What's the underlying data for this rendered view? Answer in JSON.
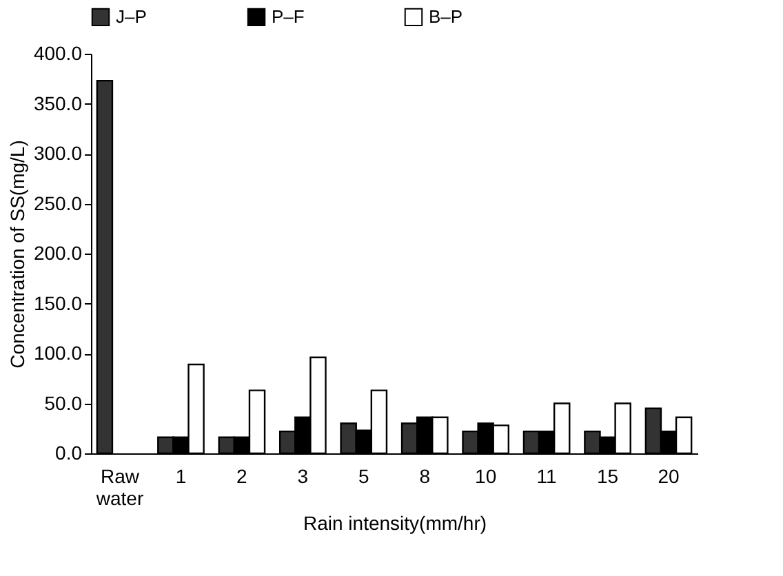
{
  "chart_data": {
    "type": "bar",
    "xlabel": "Rain intensity(mm/hr)",
    "ylabel": "Concentration of SS(mg/L)",
    "categories": [
      "Raw water",
      "1",
      "2",
      "3",
      "5",
      "8",
      "10",
      "11",
      "15",
      "20"
    ],
    "series": [
      {
        "name": "J–P",
        "color": "#333333",
        "values": [
          373,
          16,
          16,
          22,
          30,
          30,
          22,
          22,
          22,
          45
        ]
      },
      {
        "name": "P–F",
        "color": "#000000",
        "values": [
          null,
          16,
          16,
          36,
          23,
          36,
          30,
          22,
          16,
          22
        ]
      },
      {
        "name": "B–P",
        "color": "#ffffff",
        "values": [
          null,
          89,
          63,
          96,
          63,
          36,
          28,
          50,
          50,
          36
        ]
      }
    ],
    "ylim": [
      0,
      400
    ],
    "yticks": [
      {
        "value": 0,
        "label": "0.0"
      },
      {
        "value": 50,
        "label": "50.0"
      },
      {
        "value": 100,
        "label": "100.0"
      },
      {
        "value": 150,
        "label": "150.0"
      },
      {
        "value": 200,
        "label": "200.0"
      },
      {
        "value": 250,
        "label": "250.0"
      },
      {
        "value": 300,
        "label": "300.0"
      },
      {
        "value": 350,
        "label": "350.0"
      },
      {
        "value": 400,
        "label": "400.0"
      }
    ],
    "legend": "top",
    "grid": false
  }
}
